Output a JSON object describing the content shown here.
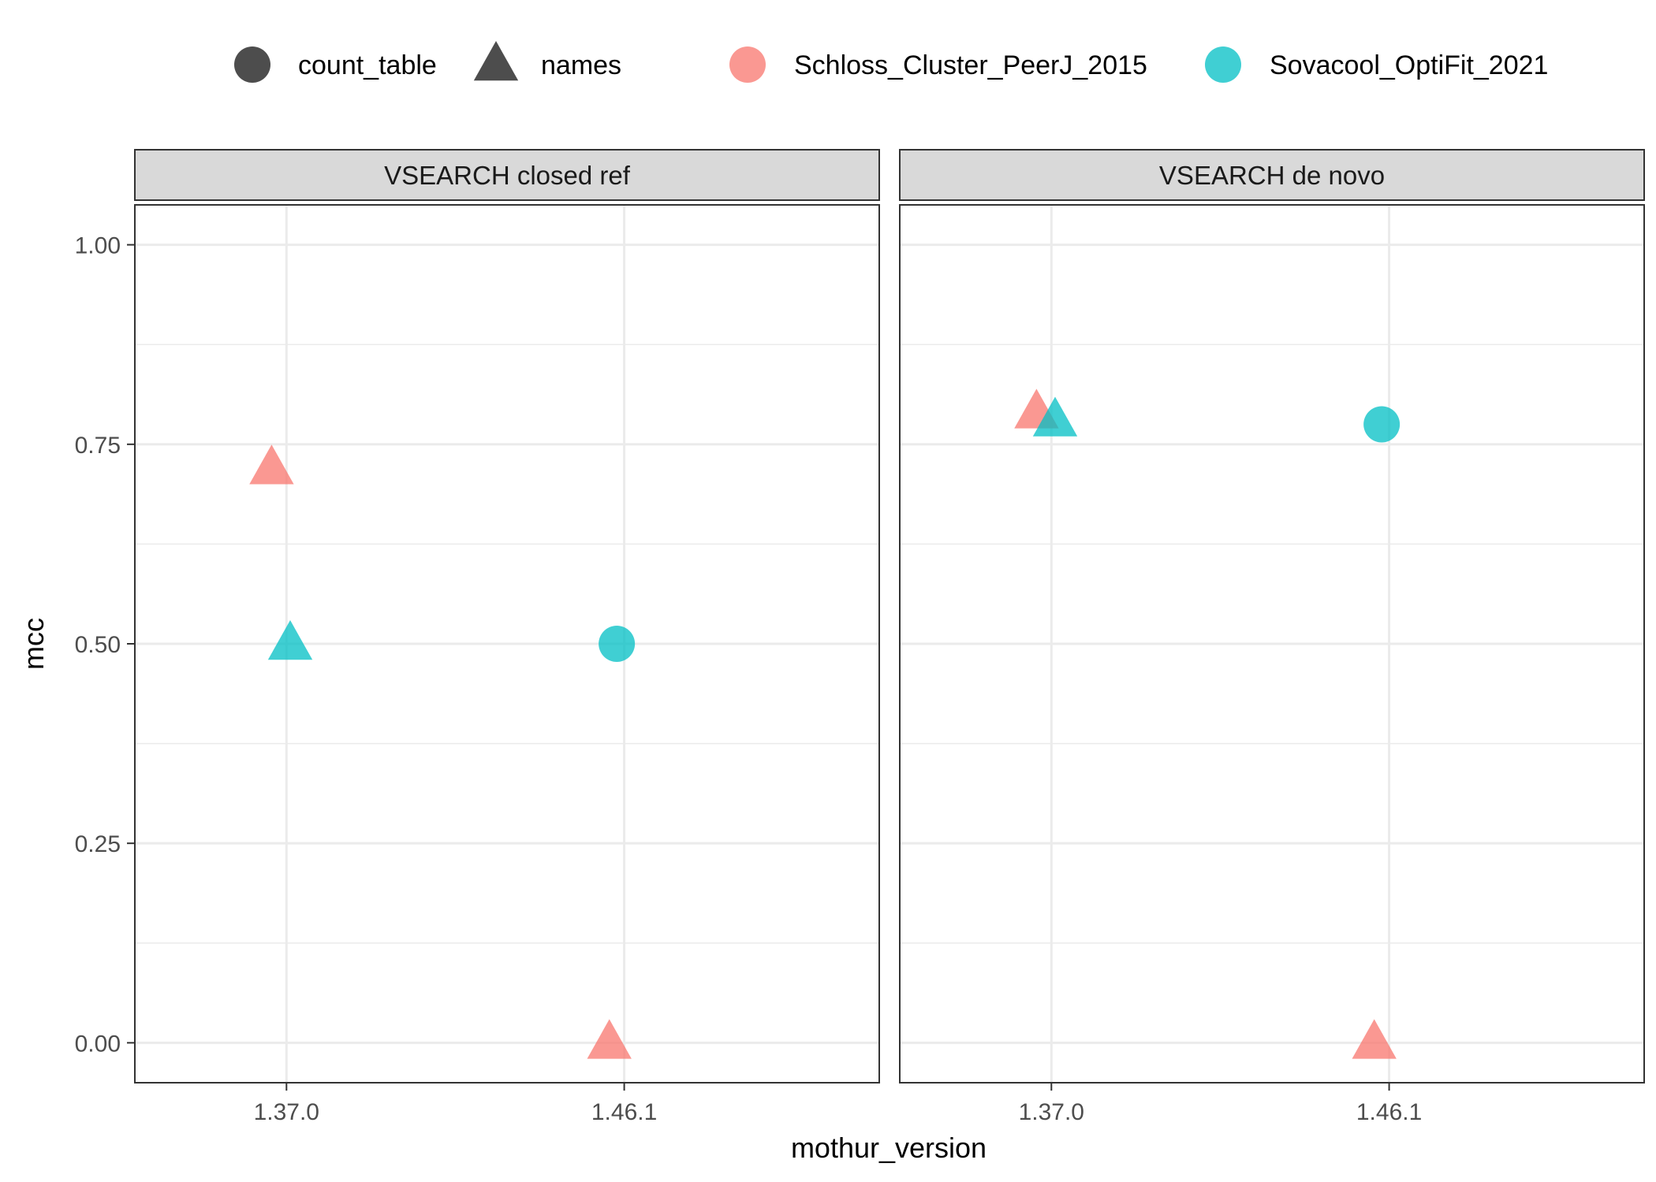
{
  "chart_data": {
    "type": "scatter",
    "xlabel": "mothur_version",
    "ylabel": "mcc",
    "categories": [
      "1.37.0",
      "1.46.1"
    ],
    "ylim": [
      -0.05,
      1.05
    ],
    "yticks": [
      {
        "value": 0.0,
        "label": "0.00"
      },
      {
        "value": 0.25,
        "label": "0.25"
      },
      {
        "value": 0.5,
        "label": "0.50"
      },
      {
        "value": 0.75,
        "label": "0.75"
      },
      {
        "value": 1.0,
        "label": "1.00"
      }
    ],
    "minor_yticks": [
      0.125,
      0.375,
      0.625,
      0.875
    ],
    "grid": true,
    "legend_position": "top",
    "shape_legend": [
      {
        "key": "count_table",
        "label": "count_table",
        "shape": "circle"
      },
      {
        "key": "names",
        "label": "names",
        "shape": "triangle"
      }
    ],
    "color_legend": [
      {
        "key": "Schloss_Cluster_PeerJ_2015",
        "label": "Schloss_Cluster_PeerJ_2015",
        "color": "#F8766D"
      },
      {
        "key": "Sovacool_OptiFit_2021",
        "label": "Sovacool_OptiFit_2021",
        "color": "#00BFC4"
      }
    ],
    "panels": [
      {
        "title": "VSEARCH closed ref",
        "points": [
          {
            "x": "1.37.0",
            "y": 0.72,
            "shape": "names",
            "series": "Schloss_Cluster_PeerJ_2015"
          },
          {
            "x": "1.37.0",
            "y": 0.5,
            "shape": "names",
            "series": "Sovacool_OptiFit_2021"
          },
          {
            "x": "1.46.1",
            "y": 0.5,
            "shape": "count_table",
            "series": "Sovacool_OptiFit_2021"
          },
          {
            "x": "1.46.1",
            "y": 0.0,
            "shape": "names",
            "series": "Schloss_Cluster_PeerJ_2015"
          }
        ]
      },
      {
        "title": "VSEARCH de novo",
        "points": [
          {
            "x": "1.37.0",
            "y": 0.79,
            "shape": "names",
            "series": "Schloss_Cluster_PeerJ_2015"
          },
          {
            "x": "1.37.0",
            "y": 0.78,
            "shape": "names",
            "series": "Sovacool_OptiFit_2021"
          },
          {
            "x": "1.46.1",
            "y": 0.775,
            "shape": "count_table",
            "series": "Sovacool_OptiFit_2021"
          },
          {
            "x": "1.46.1",
            "y": 0.0,
            "shape": "names",
            "series": "Schloss_Cluster_PeerJ_2015"
          }
        ]
      }
    ]
  }
}
